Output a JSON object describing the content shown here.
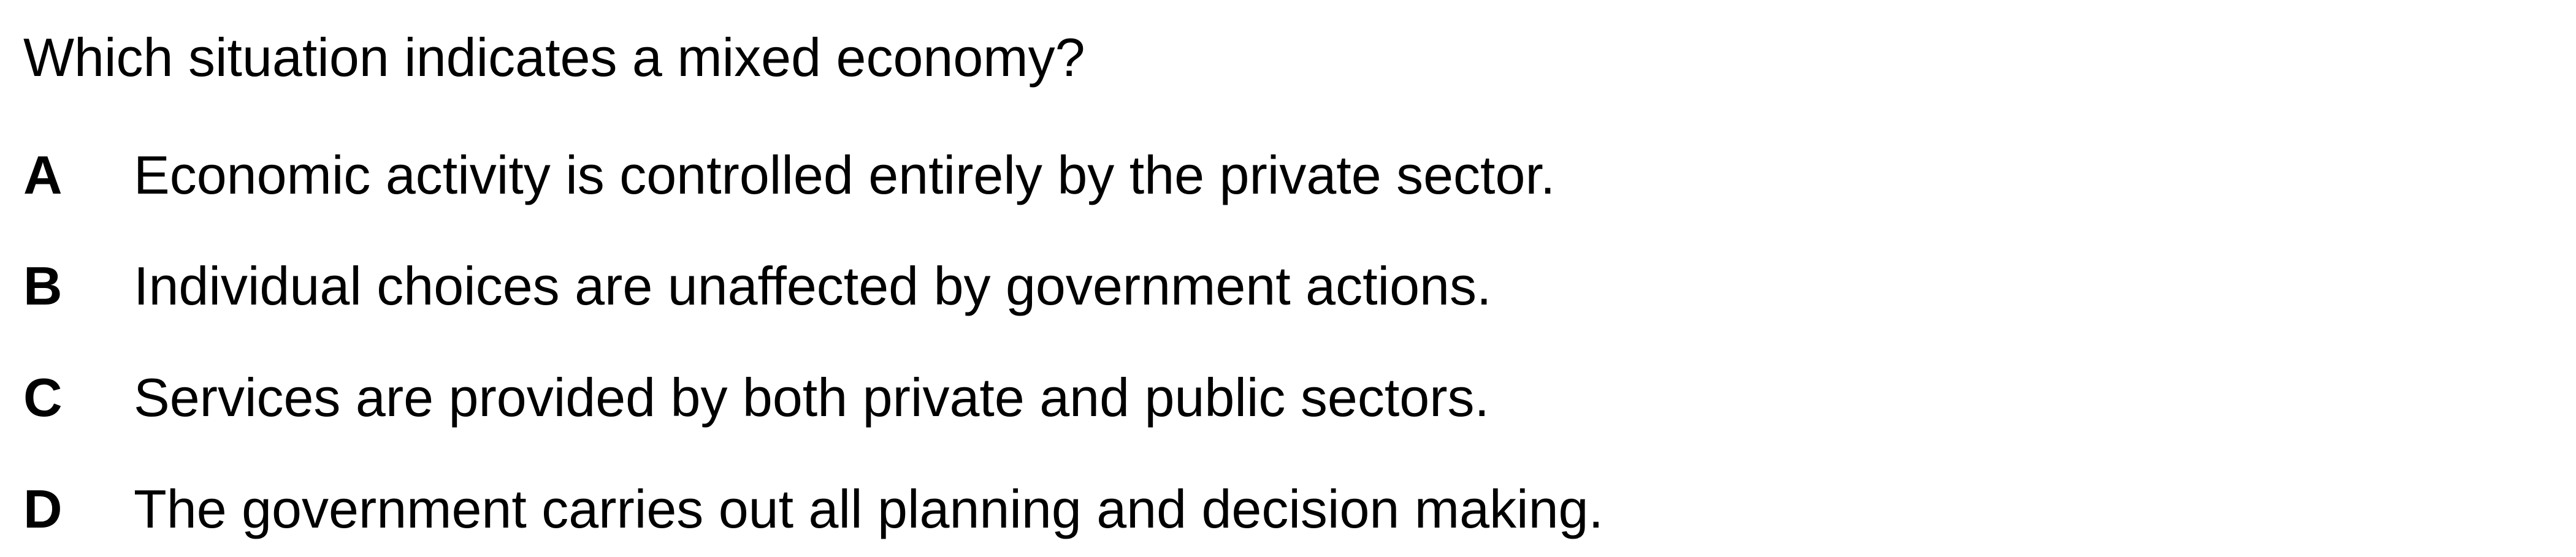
{
  "question": "Which situation indicates a mixed economy?",
  "options": [
    {
      "letter": "A",
      "text": "Economic activity is controlled entirely by the private sector."
    },
    {
      "letter": "B",
      "text": "Individual choices are unaffected by government actions."
    },
    {
      "letter": "C",
      "text": "Services are provided by both private and public sectors."
    },
    {
      "letter": "D",
      "text": "The government carries out all planning and decision making."
    }
  ]
}
